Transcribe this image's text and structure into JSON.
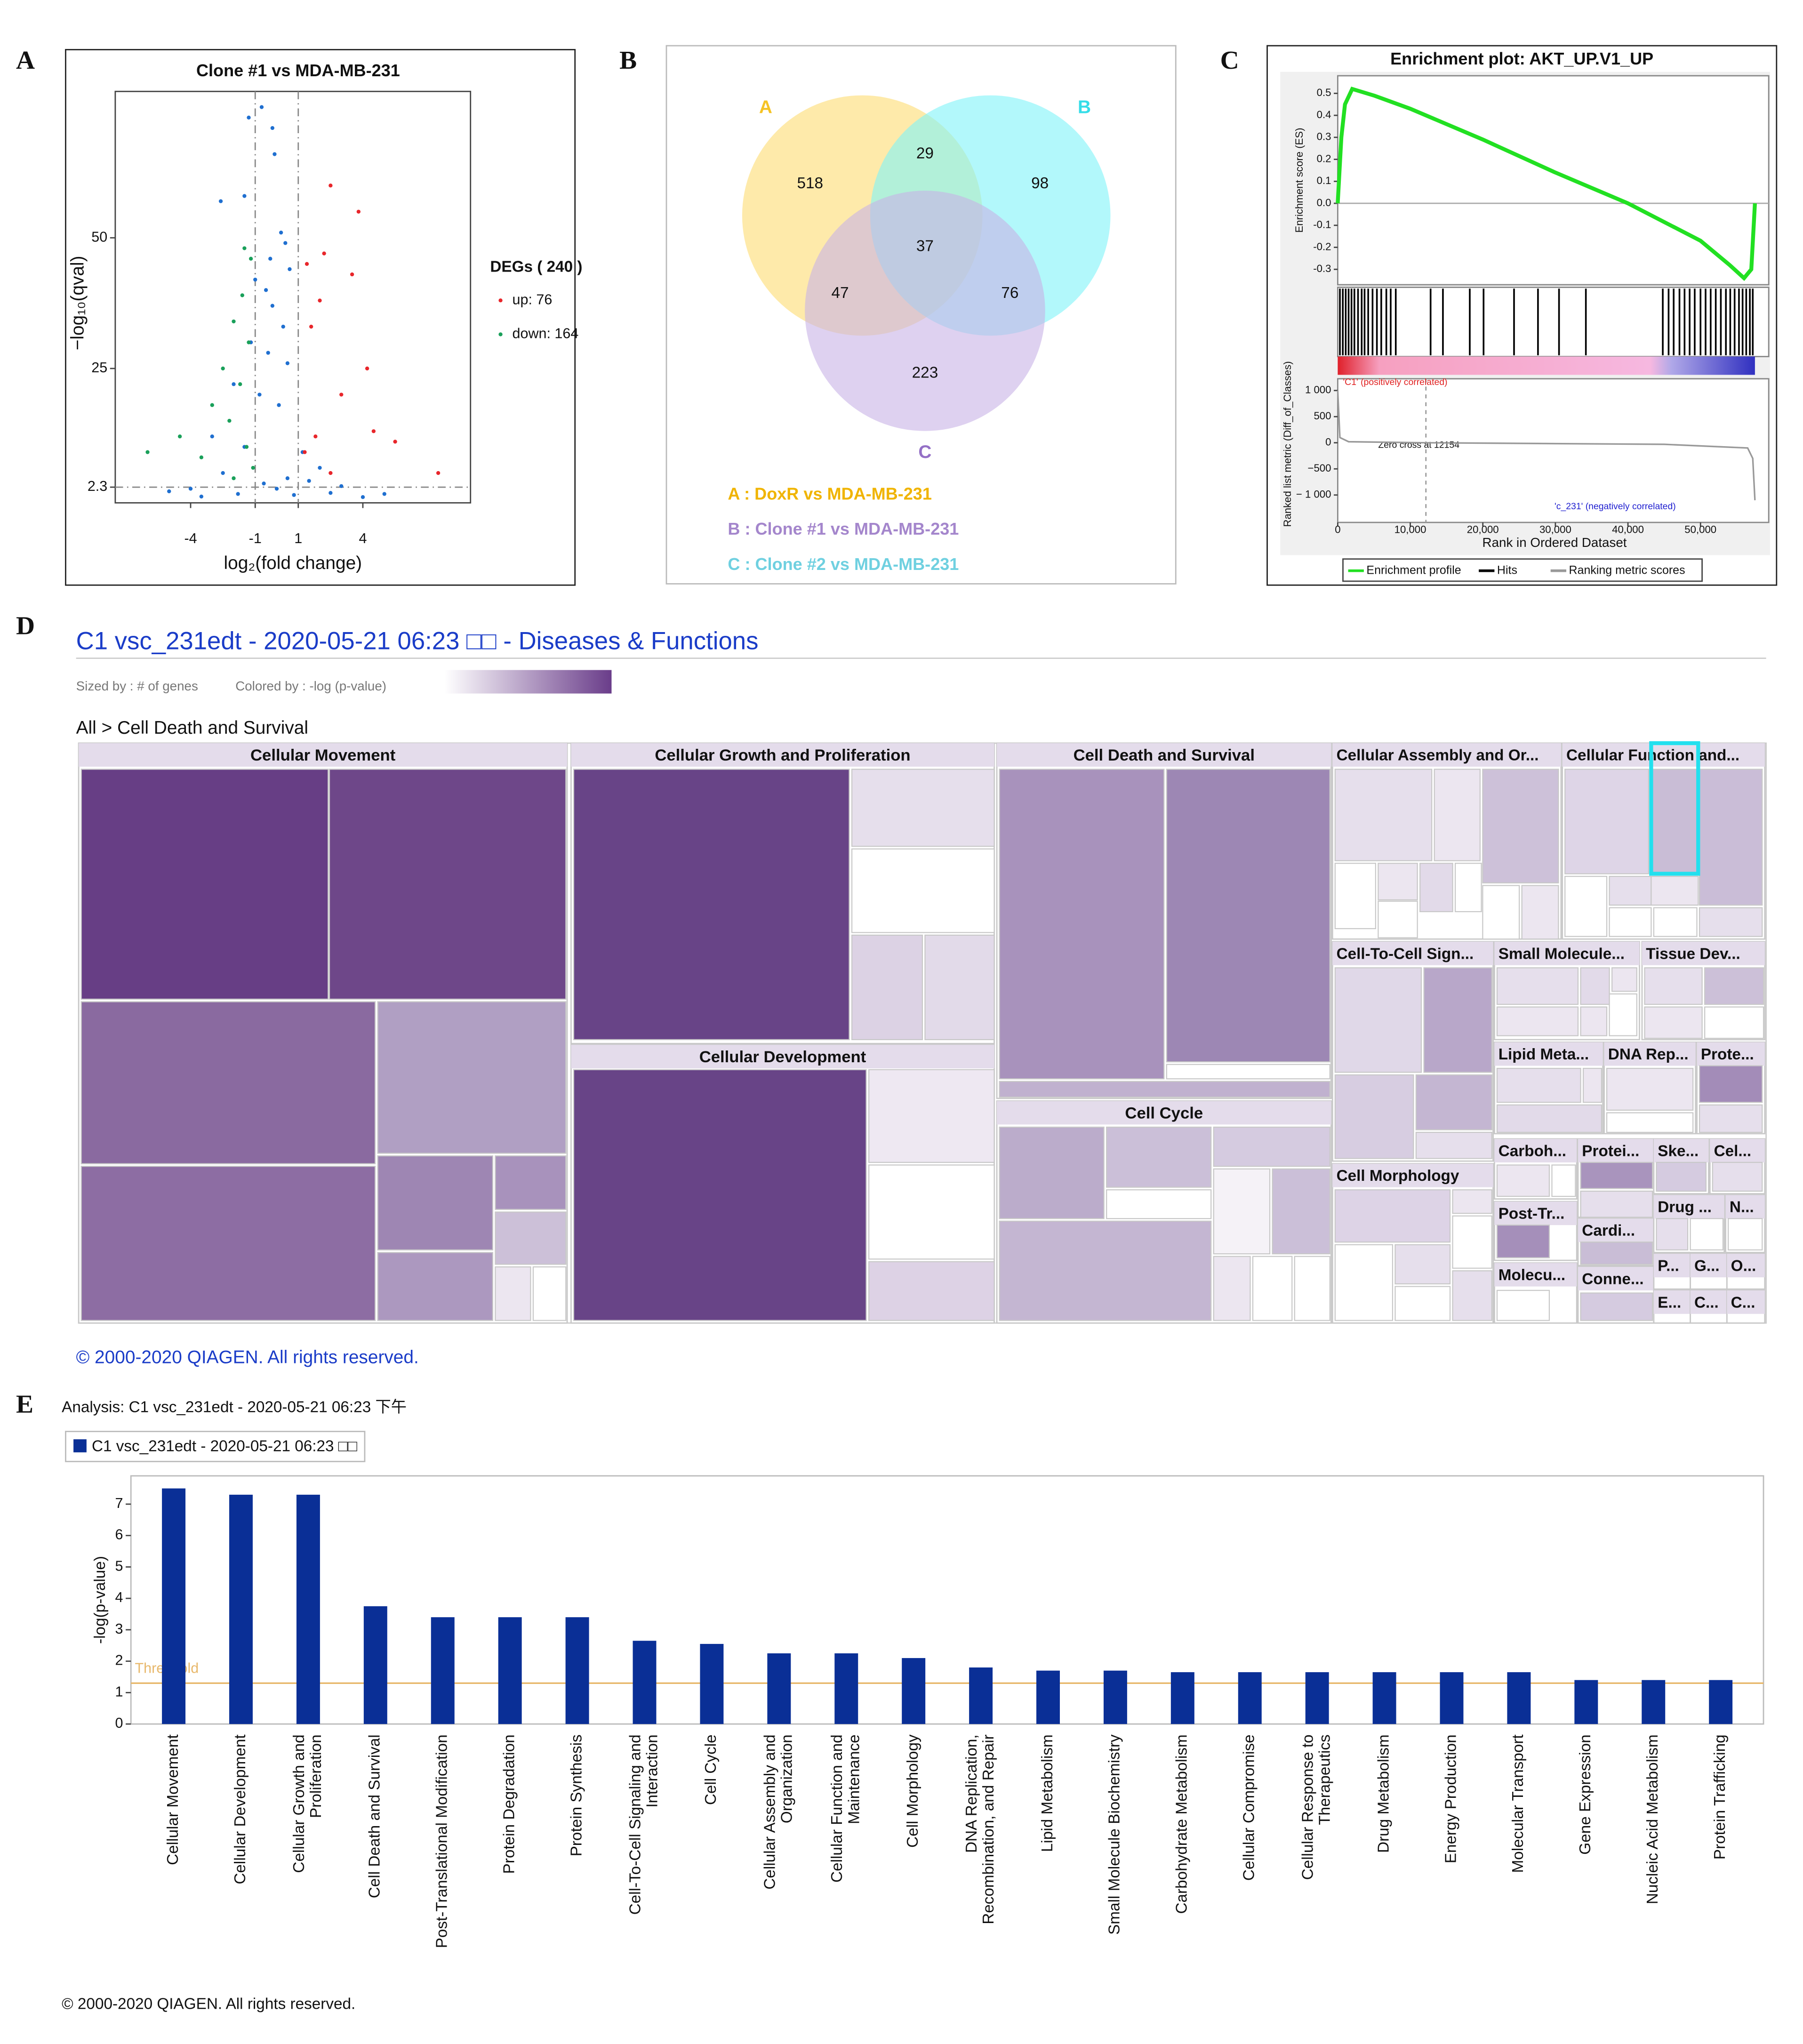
{
  "panel_labels": [
    "A",
    "B",
    "C",
    "D",
    "E"
  ],
  "chart_data": [
    {
      "type": "scatter",
      "title": "Clone #1 vs MDA-MB-231",
      "xlabel": "log₂(fold change)",
      "ylabel": "−log₁₀(qval)",
      "xlim": [
        -7.5,
        9
      ],
      "ylim": [
        -0.7,
        78
      ],
      "xticks": [
        -4,
        -1,
        1,
        4
      ],
      "yticks": [
        2.3,
        25,
        50
      ],
      "threshold_lines": {
        "x": [
          -1,
          1
        ],
        "y": [
          2.3
        ]
      },
      "legend_title": "DEGs ( 240 )",
      "series": [
        {
          "name": "up: 76",
          "color": "#e8262b",
          "x": [
            2.5,
            3.8,
            2.2,
            1.4,
            3.5,
            2,
            1.6,
            4.2,
            3,
            4.5,
            1.8,
            5.5,
            1.3,
            7.5,
            2.5
          ],
          "values": [
            60,
            55,
            47,
            45,
            43,
            38,
            33,
            25,
            20,
            13,
            12,
            11,
            9,
            5,
            5
          ]
        },
        {
          "name": "down: 164",
          "color": "#1aa05a",
          "x": [
            -1.5,
            -1.2,
            -1.6,
            -2,
            -1.3,
            -2.5,
            -1.7,
            -3,
            -2.2,
            -4.5,
            -1.4,
            -3.5,
            -6,
            -1.1,
            -2
          ],
          "values": [
            48,
            46,
            39,
            34,
            30,
            25,
            22,
            18,
            15,
            12,
            10,
            8,
            9,
            6,
            4
          ]
        },
        {
          "color": "#1f6fd0",
          "x": [
            -0.7,
            -1.3,
            -0.2,
            -0.1,
            -2.6,
            -1.5,
            0.2,
            0.4,
            -0.3,
            -1,
            0.6,
            -0.5,
            -0.2,
            0.3,
            -1.2,
            -0.4,
            0.5,
            -2,
            -0.8,
            0.1,
            -3,
            -1.5,
            1.2,
            2,
            -2.5,
            0.5,
            -0.6,
            1.5,
            -4,
            3,
            -5,
            5,
            0,
            -1.8,
            2.5,
            -3.5,
            4,
            0.8
          ],
          "values": [
            75,
            73,
            71,
            66,
            57,
            58,
            51,
            49,
            46,
            42,
            44,
            40,
            37,
            33,
            30,
            28,
            26,
            22,
            20,
            18,
            12,
            10,
            9,
            6,
            5,
            4,
            3,
            3.5,
            2,
            2.5,
            1.5,
            1,
            2,
            1,
            1.2,
            0.5,
            0.4,
            0.8
          ]
        }
      ]
    },
    {
      "type": "venn",
      "sets": [
        {
          "name": "A",
          "color": "#fddc72",
          "letter_color": "#f5c324",
          "label": "A : DoxR vs MDA-MB-231",
          "label_color": "#f0b400"
        },
        {
          "name": "B",
          "color": "#7ff3f8",
          "letter_color": "#35dde8",
          "label": "B : Clone #1 vs MDA-MB-231",
          "label_color": "#a486cc"
        },
        {
          "name": "C",
          "color": "#c8b2e6",
          "letter_color": "#9470c6",
          "label": "C : Clone #2 vs MDA-MB-231",
          "label_color": "#6fd0e0"
        }
      ],
      "values": [
        518,
        29,
        98,
        37,
        47,
        76,
        223
      ]
    },
    {
      "type": "line",
      "title": "Enrichment plot: AKT_UP.V1_UP",
      "ylabel": "Enrichment score (ES)",
      "xlabel": "Rank in Ordered Dataset",
      "y2label": "Ranked list metric (Diff_of_Classes)",
      "xlim": [
        0,
        59400
      ],
      "ylim": [
        -0.37,
        0.58
      ],
      "xticks": [
        0,
        {
          "value": 10000,
          "label": "10,000"
        },
        {
          "value": 20000,
          "label": "20,000"
        },
        {
          "value": 30000,
          "label": "30,000"
        },
        {
          "value": 40000,
          "label": "40,000"
        },
        {
          "value": 50000,
          "label": "50,000"
        }
      ],
      "yticks": [
        0.5,
        0.4,
        0.3,
        0.2,
        0.1,
        {
          "value": 0,
          "label": "0.0"
        },
        -0.1,
        -0.2,
        -0.3
      ],
      "y2lim": [
        -1525,
        1225
      ],
      "y2ticks": [
        {
          "value": 1000,
          "label": "1 000"
        },
        500,
        0,
        {
          "value": -500,
          "label": "−500"
        },
        {
          "value": -1000,
          "label": "− 1 000"
        }
      ],
      "zero_cross": 12154,
      "zero_cross_label": "Zero cross at 12154",
      "positive_label": "'C1' (positively correlated)",
      "negative_label": "'c_231' (negatively correlated)",
      "series": [
        {
          "name": "Enrichment profile",
          "color": "#22e022",
          "x": [
            0,
            500,
            1000,
            2000,
            3000,
            5000,
            10000,
            20000,
            30000,
            40000,
            50000,
            54000,
            56000,
            57000,
            57500
          ],
          "values": [
            0,
            0.3,
            0.45,
            0.52,
            0.51,
            0.49,
            0.43,
            0.29,
            0.14,
            0.0,
            -0.17,
            -0.28,
            -0.34,
            -0.3,
            0
          ]
        },
        {
          "name": "Hits",
          "color": "#000000",
          "x": [
            300,
            700,
            1100,
            1500,
            1900,
            2300,
            2800,
            3300,
            3700,
            4200,
            4800,
            5400,
            6000,
            6700,
            7300,
            8000,
            12800,
            14500,
            18200,
            20100,
            24300,
            27600,
            30500,
            34200,
            44800,
            45600,
            46300,
            47100,
            47800,
            48500,
            49200,
            50000,
            50700,
            51400,
            52100,
            52800,
            53500,
            54100,
            54700,
            55300,
            55800,
            56300,
            56800,
            57200
          ]
        },
        {
          "name": "Ranking metric scores",
          "color": "#999999",
          "axis": "y2",
          "x": [
            0,
            300,
            1500,
            12154,
            45000,
            56500,
            57200,
            57500
          ],
          "values": [
            1000,
            100,
            20,
            0,
            -30,
            -100,
            -300,
            -1100
          ]
        }
      ]
    },
    {
      "type": "treemap",
      "title": "C1 vsc_231edt - 2020-05-21 06:23 □□ - Diseases & Functions",
      "size_note": "Sized by : # of genes",
      "color_note": "Colored by : -log (p-value)",
      "breadcrumb": "All > Cell Death and Survival",
      "groups": [
        "Cellular Movement",
        "Cellular Growth and Proliferation",
        "Cellular Development",
        "Cell Death and Survival",
        "Cell Cycle",
        "Cellular Assembly and Or...",
        "Cellular Function and...",
        "Cell-To-Cell Sign...",
        "Small Molecule...",
        "Tissue Dev...",
        "Lipid Meta...",
        "DNA Rep...",
        "Prote...",
        "Cell Morphology",
        "Carboh...",
        "Protei...",
        "Ske...",
        "Cel...",
        "Post-Tr...",
        "Cardi...",
        "Drug ...",
        "N...",
        "Molecu...",
        "Conne...",
        "P...",
        "G...",
        "O...",
        "E...",
        "C...",
        "C..."
      ],
      "footer": "© 2000-2020 QIAGEN. All rights reserved."
    },
    {
      "type": "bar",
      "analysis": "Analysis: C1 vsc_231edt - 2020-05-21 06:23 下午",
      "series_name": "C1 vsc_231edt - 2020-05-21 06:23 □□",
      "color": "#0a2f96",
      "ylabel": "-log(p-value)",
      "ylim": [
        0,
        7.9
      ],
      "yticks": [
        0,
        1,
        2,
        3,
        4,
        5,
        6,
        7
      ],
      "threshold": 1.3,
      "threshold_label": "Threshold",
      "threshold_color": "#e8b86b",
      "categories": [
        "Cellular Movement",
        "Cellular Development",
        "Cellular Growth and\nProliferation",
        "Cell Death and Survival",
        "Post-Translational Modification",
        "Protein Degradation",
        "Protein Synthesis",
        "Cell-To-Cell Signaling and\nInteraction",
        "Cell Cycle",
        "Cellular Assembly and\nOrganization",
        "Cellular Function and\nMaintenance",
        "Cell Morphology",
        "DNA Replication,\nRecombination, and Repair",
        "Lipid Metabolism",
        "Small Molecule Biochemistry",
        "Carbohydrate Metabolism",
        "Cellular Compromise",
        "Cellular Response to\nTherapeutics",
        "Drug Metabolism",
        "Energy Production",
        "Molecular Transport",
        "Gene Expression",
        "Nucleic Acid Metabolism",
        "Protein Trafficking"
      ],
      "values": [
        7.5,
        7.3,
        7.3,
        3.75,
        3.4,
        3.4,
        3.4,
        2.65,
        2.55,
        2.25,
        2.25,
        2.1,
        1.8,
        1.7,
        1.7,
        1.65,
        1.65,
        1.65,
        1.65,
        1.65,
        1.65,
        1.4,
        1.4,
        1.4
      ],
      "footer": "© 2000-2020 QIAGEN. All rights reserved."
    }
  ]
}
